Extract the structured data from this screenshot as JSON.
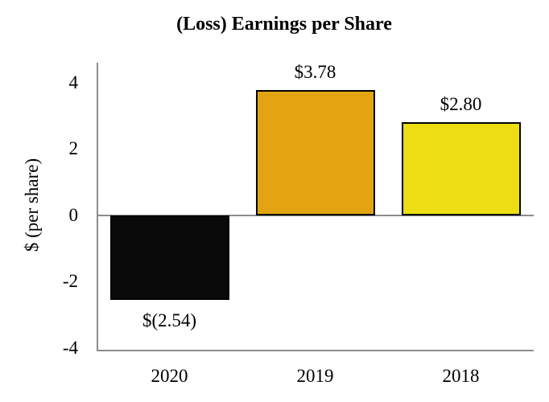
{
  "chart_data": {
    "type": "bar",
    "title": "(Loss) Earnings per Share",
    "xlabel": "",
    "ylabel": "$ (per share)",
    "categories": [
      "2020",
      "2019",
      "2018"
    ],
    "values": [
      -2.54,
      3.78,
      2.8
    ],
    "value_labels": [
      "$(2.54)",
      "$3.78",
      "$2.80"
    ],
    "bar_colors": [
      "#0a0a0a",
      "#e2a511",
      "#ecde12"
    ],
    "bar_border_color": "#000000",
    "axis_color": "#8c8c8c",
    "ylim": [
      -4.1,
      4.6
    ],
    "yticks": [
      4,
      2,
      0,
      -2,
      -4
    ],
    "ytick_labels": [
      "4",
      "2",
      "0",
      "-2",
      "-4"
    ],
    "grid": "off",
    "legend": "none"
  }
}
